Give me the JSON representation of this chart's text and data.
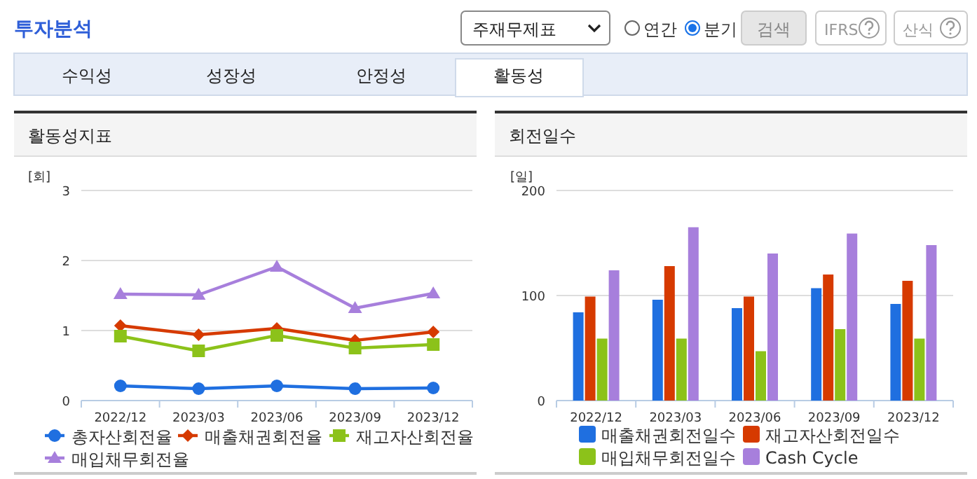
{
  "chart_data": [
    {
      "type": "other",
      "title": "투자분석",
      "annotations": [
        "주재무제표",
        "연간",
        "분기",
        "검색",
        "IFRS",
        "산식",
        "수익성",
        "성장성",
        "안정성",
        "활동성"
      ]
    },
    {
      "type": "line",
      "title": "활동성지표",
      "ylabel": "[회]",
      "categories": [
        "2022/12",
        "2023/03",
        "2023/06",
        "2023/09",
        "2023/12"
      ],
      "ylim": [
        0,
        3
      ],
      "yticks": [
        0,
        1,
        2,
        3
      ],
      "grid": "y",
      "legend": "bottom",
      "series": [
        {
          "name": "총자산회전율",
          "color": "#1f6fe0",
          "marker": "circle",
          "values": [
            0.21,
            0.17,
            0.21,
            0.17,
            0.18
          ]
        },
        {
          "name": "매출채권회전율",
          "color": "#d63a00",
          "marker": "diamond",
          "values": [
            1.07,
            0.94,
            1.03,
            0.86,
            0.98
          ]
        },
        {
          "name": "재고자산회전율",
          "color": "#8cc21a",
          "marker": "square",
          "values": [
            0.92,
            0.71,
            0.93,
            0.75,
            0.8
          ]
        },
        {
          "name": "매입채무회전율",
          "color": "#a77fdc",
          "marker": "triangle",
          "values": [
            1.52,
            1.51,
            1.91,
            1.32,
            1.53
          ]
        }
      ]
    },
    {
      "type": "bar",
      "title": "회전일수",
      "ylabel": "[일]",
      "categories": [
        "2022/12",
        "2023/03",
        "2023/06",
        "2023/09",
        "2023/12"
      ],
      "ylim": [
        0,
        200
      ],
      "yticks": [
        0,
        100,
        200
      ],
      "grid": "y",
      "legend": "bottom",
      "series": [
        {
          "name": "매출채권회전일수",
          "color": "#1f6fe0",
          "values": [
            84,
            96,
            88,
            107,
            92
          ]
        },
        {
          "name": "재고자산회전일수",
          "color": "#d63a00",
          "values": [
            99,
            128,
            99,
            120,
            114
          ]
        },
        {
          "name": "매입채무회전일수",
          "color": "#8cc21a",
          "values": [
            59,
            59,
            47,
            68,
            59
          ]
        },
        {
          "name": "Cash Cycle",
          "color": "#a77fdc",
          "values": [
            124,
            165,
            140,
            159,
            148
          ]
        }
      ]
    }
  ]
}
